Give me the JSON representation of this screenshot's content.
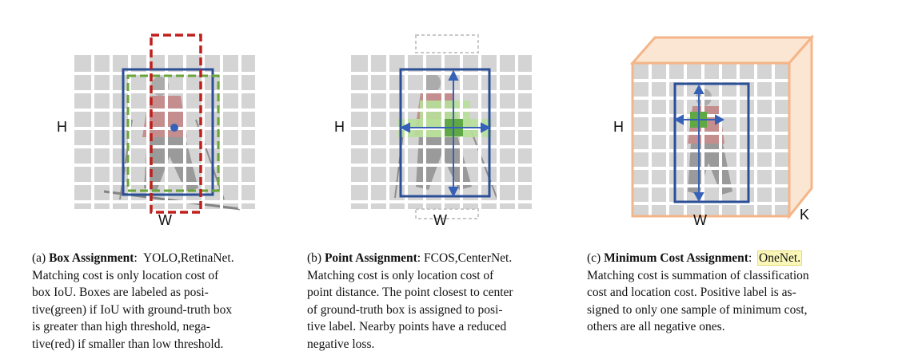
{
  "colors": {
    "grid_bg": "#d3d3d3",
    "grid_lines": "#ffffff",
    "gt_box": "#2b4f96",
    "positive_box": "#6aa53a",
    "negative_box": "#c0201d",
    "point_center": "#5fa843",
    "point_region": "#b7e09a",
    "cost_volume": "#f4b588",
    "highlight": "#fbf7b9"
  },
  "panels": [
    {
      "axis_h": "H",
      "axis_w": "W",
      "caption_tag": "(a)",
      "caption_title": "Box Assignment",
      "caption_methods": "YOLO,RetinaNet.",
      "caption_lines": [
        "Matching cost is only location cost of",
        "box IoU. Boxes are labeled as posi-",
        "tive(green) if IoU with ground-truth box",
        "is greater than high threshold, nega-",
        "tive(red) if smaller than low threshold."
      ]
    },
    {
      "axis_h": "H",
      "axis_w": "W",
      "caption_tag": "(b)",
      "caption_title": "Point Assignment",
      "caption_methods": "FCOS,CenterNet.",
      "caption_lines": [
        "Matching cost is only location cost of",
        "point distance. The point closest to center",
        "of ground-truth box is assigned to posi-",
        "tive label. Nearby points have a reduced",
        "negative loss."
      ]
    },
    {
      "axis_h": "H",
      "axis_w": "W",
      "axis_k": "K",
      "caption_tag": "(c)",
      "caption_title": "Minimum Cost Assignment",
      "caption_methods": "OneNet.",
      "caption_lines": [
        "Matching cost is summation of classification",
        "cost and location cost. Positive label is as-",
        "signed to only one sample of minimum cost,",
        "others are all negative ones."
      ]
    }
  ]
}
